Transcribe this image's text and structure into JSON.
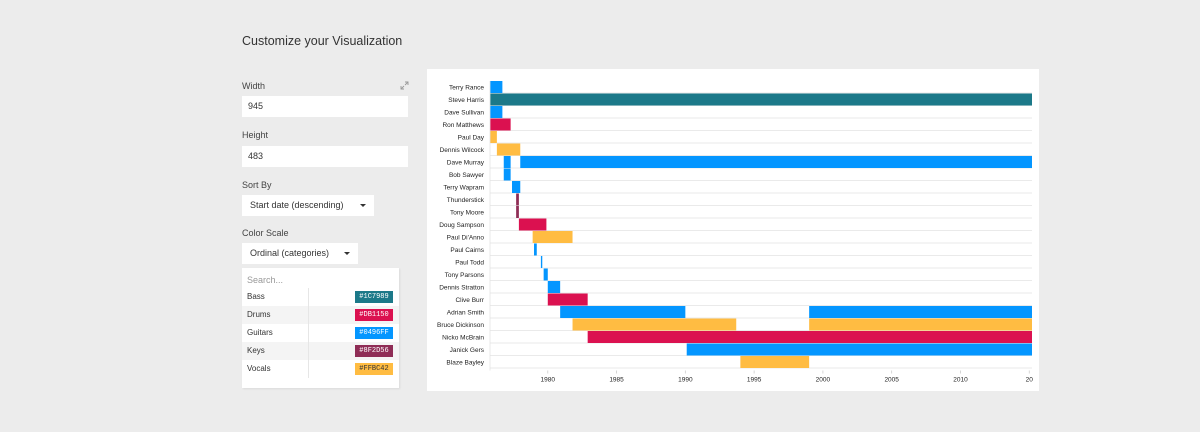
{
  "page": {
    "title": "Customize your Visualization"
  },
  "width": {
    "label": "Width",
    "value": "945"
  },
  "height": {
    "label": "Height",
    "value": "483"
  },
  "sort_by": {
    "label": "Sort By",
    "selected": "Start date (descending)"
  },
  "color_scale": {
    "label": "Color Scale",
    "selected": "Ordinal (categories)",
    "search_placeholder": "Search...",
    "items": [
      {
        "name": "Bass",
        "color": "#1C7989"
      },
      {
        "name": "Drums",
        "color": "#DB1150"
      },
      {
        "name": "Guitars",
        "color": "#0496FF"
      },
      {
        "name": "Keys",
        "color": "#8F2D56"
      },
      {
        "name": "Vocals",
        "color": "#FFBC42"
      }
    ]
  },
  "icons": {
    "expand": "expand-icon",
    "dropdown": "chevron-down-icon"
  },
  "chart_data": {
    "type": "bar",
    "subtype": "timeline",
    "x_ticks": [
      1980,
      1985,
      1990,
      1995,
      2000,
      2005,
      2010,
      "20"
    ],
    "xlim": [
      1975.8,
      2015.2
    ],
    "grid": true,
    "rows": [
      {
        "name": "Terry Rance",
        "bars": [
          {
            "start": 1975.8,
            "end": 1976.7,
            "category": "Guitars"
          }
        ]
      },
      {
        "name": "Steve Harris",
        "bars": [
          {
            "start": 1975.8,
            "end": 2015.2,
            "category": "Bass"
          }
        ]
      },
      {
        "name": "Dave Sullivan",
        "bars": [
          {
            "start": 1975.8,
            "end": 1976.7,
            "category": "Guitars"
          }
        ]
      },
      {
        "name": "Ron Matthews",
        "bars": [
          {
            "start": 1975.8,
            "end": 1977.3,
            "category": "Drums"
          }
        ]
      },
      {
        "name": "Paul Day",
        "bars": [
          {
            "start": 1975.8,
            "end": 1976.3,
            "category": "Vocals"
          }
        ]
      },
      {
        "name": "Dennis Wilcock",
        "bars": [
          {
            "start": 1976.3,
            "end": 1978.0,
            "category": "Vocals"
          }
        ]
      },
      {
        "name": "Dave Murray",
        "bars": [
          {
            "start": 1976.8,
            "end": 1977.3,
            "category": "Guitars"
          },
          {
            "start": 1978.0,
            "end": 2015.2,
            "category": "Guitars"
          }
        ]
      },
      {
        "name": "Bob Sawyer",
        "bars": [
          {
            "start": 1976.8,
            "end": 1977.3,
            "category": "Guitars"
          }
        ]
      },
      {
        "name": "Terry Wapram",
        "bars": [
          {
            "start": 1977.4,
            "end": 1978.0,
            "category": "Guitars"
          }
        ]
      },
      {
        "name": "Thunderstick",
        "bars": [
          {
            "start": 1977.7,
            "end": 1977.9,
            "category": "Keys"
          }
        ]
      },
      {
        "name": "Tony Moore",
        "bars": [
          {
            "start": 1977.7,
            "end": 1977.9,
            "category": "Keys"
          }
        ]
      },
      {
        "name": "Doug Sampson",
        "bars": [
          {
            "start": 1977.9,
            "end": 1979.9,
            "category": "Drums"
          }
        ]
      },
      {
        "name": "Paul Di'Anno",
        "bars": [
          {
            "start": 1978.9,
            "end": 1981.8,
            "category": "Vocals"
          }
        ]
      },
      {
        "name": "Paul Cairns",
        "bars": [
          {
            "start": 1979.0,
            "end": 1979.2,
            "category": "Guitars"
          }
        ]
      },
      {
        "name": "Paul Todd",
        "bars": [
          {
            "start": 1979.5,
            "end": 1979.6,
            "category": "Guitars"
          }
        ]
      },
      {
        "name": "Tony Parsons",
        "bars": [
          {
            "start": 1979.7,
            "end": 1980.0,
            "category": "Guitars"
          }
        ]
      },
      {
        "name": "Dennis Stratton",
        "bars": [
          {
            "start": 1980.0,
            "end": 1980.9,
            "category": "Guitars"
          }
        ]
      },
      {
        "name": "Clive Burr",
        "bars": [
          {
            "start": 1980.0,
            "end": 1982.9,
            "category": "Drums"
          }
        ]
      },
      {
        "name": "Adrian Smith",
        "bars": [
          {
            "start": 1980.9,
            "end": 1990.0,
            "category": "Guitars"
          },
          {
            "start": 1999.0,
            "end": 2015.2,
            "category": "Guitars"
          }
        ]
      },
      {
        "name": "Bruce Dickinson",
        "bars": [
          {
            "start": 1981.8,
            "end": 1993.7,
            "category": "Vocals"
          },
          {
            "start": 1999.0,
            "end": 2015.2,
            "category": "Vocals"
          }
        ]
      },
      {
        "name": "Nicko McBrain",
        "bars": [
          {
            "start": 1982.9,
            "end": 2015.2,
            "category": "Drums"
          }
        ]
      },
      {
        "name": "Janick Gers",
        "bars": [
          {
            "start": 1990.1,
            "end": 2015.2,
            "category": "Guitars"
          }
        ]
      },
      {
        "name": "Blaze Bayley",
        "bars": [
          {
            "start": 1994.0,
            "end": 1999.0,
            "category": "Vocals"
          }
        ]
      }
    ]
  }
}
